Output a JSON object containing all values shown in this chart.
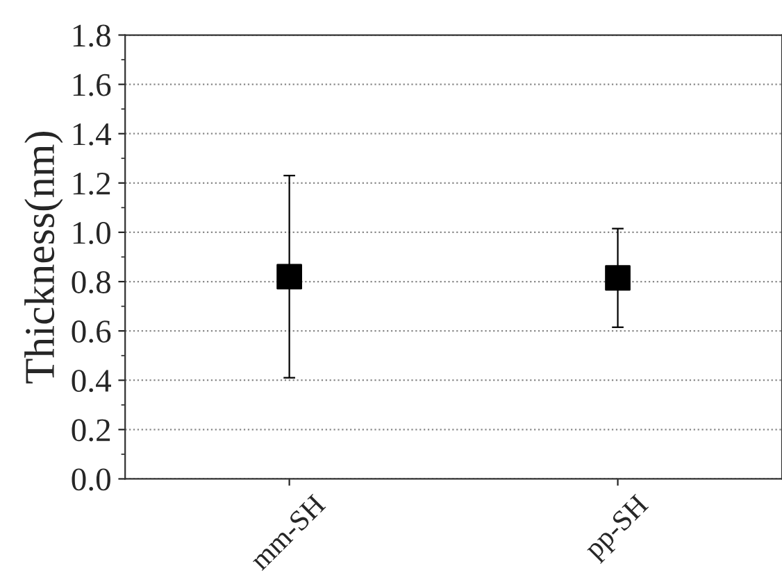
{
  "chart_data": {
    "type": "scatter",
    "ylabel": "Thickness(nm)",
    "categories": [
      "mm-SH",
      "pp-SH"
    ],
    "series": [
      {
        "color": "#000000",
        "values": [
          0.82,
          0.815
        ],
        "errors": [
          0.41,
          0.2
        ]
      }
    ],
    "ylim": [
      0,
      1.8
    ],
    "yticks": [
      "0.0",
      0.2,
      0.4,
      0.6,
      0.8,
      "1.0",
      1.2,
      1.4,
      1.6,
      1.8
    ],
    "grid": "y",
    "marker": "square",
    "legend": false
  }
}
